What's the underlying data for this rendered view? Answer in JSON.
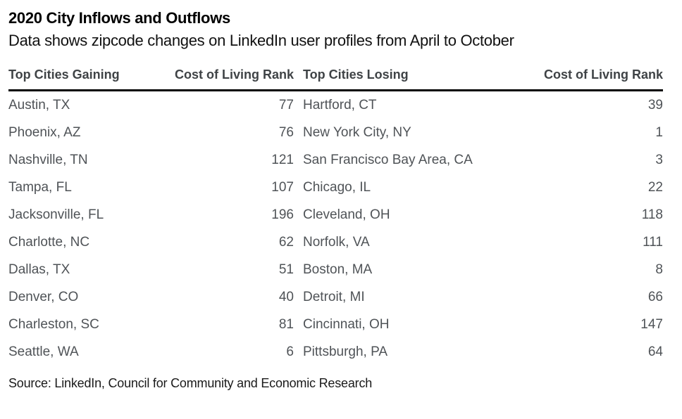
{
  "chart_data": {
    "type": "table",
    "title": "2020 City Inflows and Outflows",
    "subtitle": "Data shows zipcode changes on LinkedIn user profiles from April to October",
    "columns": [
      "Top Cities Gaining",
      "Cost of Living Rank",
      "Top Cities Losing",
      "Cost of Living Rank"
    ],
    "rows": [
      [
        "Austin, TX",
        77,
        "Hartford, CT",
        39
      ],
      [
        "Phoenix, AZ",
        76,
        "New York City, NY",
        1
      ],
      [
        "Nashville, TN",
        121,
        "San Francisco Bay Area, CA",
        3
      ],
      [
        "Tampa, FL",
        107,
        "Chicago, IL",
        22
      ],
      [
        "Jacksonville, FL",
        196,
        "Cleveland, OH",
        118
      ],
      [
        "Charlotte, NC",
        62,
        "Norfolk, VA",
        111
      ],
      [
        "Dallas, TX",
        51,
        "Boston, MA",
        8
      ],
      [
        "Denver, CO",
        40,
        "Detroit, MI",
        66
      ],
      [
        "Charleston, SC",
        81,
        "Cincinnati, OH",
        147
      ],
      [
        "Seattle, WA",
        6,
        "Pittsburgh, PA",
        64
      ]
    ],
    "source": "Source: LinkedIn, Council for Community and Economic Research",
    "layout": {
      "legend": "none",
      "grid": "off",
      "header_rule_color": "#000000"
    },
    "colors": {
      "background": "#ffffff",
      "title_text": "#000000",
      "header_text": "#3f4346",
      "body_text": "#4f5357",
      "source_text": "#1a1a1a",
      "header_rule": "#000000"
    }
  }
}
